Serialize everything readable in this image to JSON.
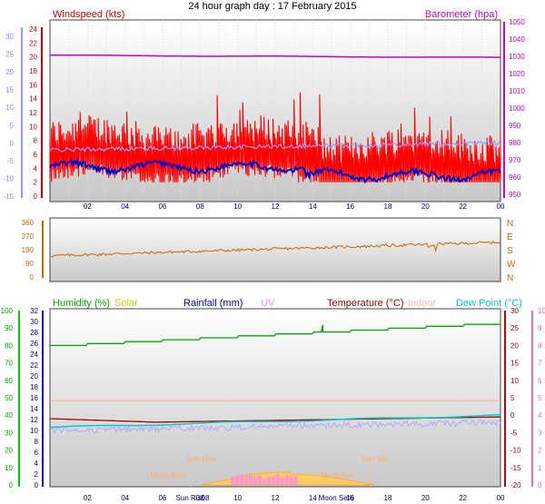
{
  "title": "24 hour graph day : 17 February 2015",
  "x_ticks": [
    "02",
    "04",
    "06",
    "08",
    "10",
    "12",
    "14",
    "16",
    "18",
    "20",
    "22",
    "00"
  ],
  "panel1": {
    "left_label": "Windspeed (kts)",
    "right_label": "Barometer (hpa)",
    "left_outer_ticks": [
      "-15",
      "-10",
      "-5",
      "0",
      "5",
      "10",
      "15",
      "20",
      "25",
      "30"
    ],
    "left_inner_ticks": [
      "0",
      "2",
      "4",
      "6",
      "8",
      "10",
      "12",
      "14",
      "16",
      "18",
      "20",
      "22",
      "24"
    ],
    "right_ticks": [
      "950",
      "960",
      "970",
      "980",
      "990",
      "1000",
      "1010",
      "1020",
      "1030",
      "1040",
      "1050"
    ],
    "colors": {
      "gust": "#ff0000",
      "avg": "#0000cc",
      "temp": "#9999ff",
      "baro": "#cc00cc"
    }
  },
  "panel2": {
    "left_ticks": [
      "0",
      "90",
      "180",
      "270",
      "360"
    ],
    "right_letters": [
      "N",
      "W",
      "S",
      "E",
      "N"
    ],
    "color": "#cc6600"
  },
  "panel3": {
    "labels": {
      "humidity": "Humidity (%)",
      "solar": "Solar",
      "rainfall": "Rainfall (mm)",
      "uv": "UV",
      "temperature": "Temperature (°C)",
      "indoor": "Indoor",
      "dewpoint": "Dew Point (°C)"
    },
    "hum_ticks": [
      "0",
      "10",
      "20",
      "30",
      "40",
      "50",
      "60",
      "70",
      "80",
      "90",
      "100"
    ],
    "rain_ticks": [
      "0",
      "2",
      "4",
      "6",
      "8",
      "10",
      "12",
      "14",
      "16",
      "18",
      "20",
      "22",
      "24",
      "26",
      "28",
      "30",
      "32"
    ],
    "temp_ticks": [
      "-20",
      "-15",
      "-10",
      "-5",
      "0",
      "5",
      "10",
      "15",
      "20",
      "25",
      "30"
    ],
    "uv_ticks": [
      "0",
      "1",
      "2",
      "3",
      "4",
      "5",
      "6",
      "7",
      "8",
      "9",
      "10"
    ],
    "annotations": {
      "sun_rise": "Sun Rise",
      "sun_set": "Sun Set",
      "moon_rise": "Moon Rise",
      "moon_set": "Moon Set"
    },
    "axis_overlays": {
      "sun_rise_tick": "Sun Ris08",
      "moon_set_tick": "Moon Set6"
    }
  },
  "chart_data": [
    {
      "type": "line",
      "title": "24 hour graph day : 17 February 2015",
      "x": [
        "00",
        "02",
        "04",
        "06",
        "08",
        "10",
        "12",
        "14",
        "16",
        "18",
        "20",
        "22",
        "00"
      ],
      "series": [
        {
          "name": "Windspeed (kts)",
          "values": [
            8,
            8,
            8,
            7,
            8,
            8,
            8,
            8,
            7,
            6,
            6,
            6,
            8
          ]
        },
        {
          "name": "Barometer (hpa)",
          "values": [
            1031,
            1031,
            1030,
            1030,
            1030,
            1030,
            1030,
            1030,
            1029,
            1029,
            1029,
            1029,
            1029
          ]
        }
      ],
      "ylim_left": [
        0,
        24
      ],
      "ylim_right": [
        950,
        1050
      ]
    },
    {
      "type": "line",
      "x": [
        "00",
        "02",
        "04",
        "06",
        "08",
        "10",
        "12",
        "14",
        "16",
        "18",
        "20",
        "22",
        "00"
      ],
      "series": [
        {
          "name": "Wind direction",
          "values": [
            140,
            145,
            150,
            160,
            170,
            185,
            195,
            200,
            205,
            215,
            210,
            220,
            230
          ]
        }
      ],
      "ylim": [
        0,
        360
      ]
    },
    {
      "type": "line",
      "x": [
        "00",
        "02",
        "04",
        "06",
        "08",
        "10",
        "12",
        "14",
        "16",
        "18",
        "20",
        "22",
        "00"
      ],
      "series": [
        {
          "name": "Humidity (%)",
          "values": [
            80,
            81,
            82,
            83,
            83,
            84,
            86,
            88,
            90,
            91,
            92,
            93,
            94
          ]
        },
        {
          "name": "Temperature (°C)",
          "values": [
            -1,
            -2,
            -2,
            -1,
            -1,
            -0.5,
            -0.3,
            0,
            0,
            0.3,
            0.5,
            0.5,
            0.5
          ]
        },
        {
          "name": "Dew Point (°C)",
          "values": [
            -4,
            -3.5,
            -3,
            -2.5,
            -2,
            -2,
            -1.5,
            -1,
            -0.5,
            -0.5,
            0,
            0,
            0
          ]
        },
        {
          "name": "Indoor",
          "values": [
            4,
            4,
            4,
            4,
            4,
            4,
            4,
            4,
            4,
            4,
            4,
            4,
            4
          ]
        },
        {
          "name": "Solar",
          "values": [
            0,
            0,
            0,
            0,
            0,
            1,
            2,
            2,
            1,
            0,
            0,
            0,
            0
          ]
        }
      ],
      "ylim_humidity": [
        0,
        100
      ],
      "ylim_temp": [
        -20,
        30
      ]
    }
  ]
}
